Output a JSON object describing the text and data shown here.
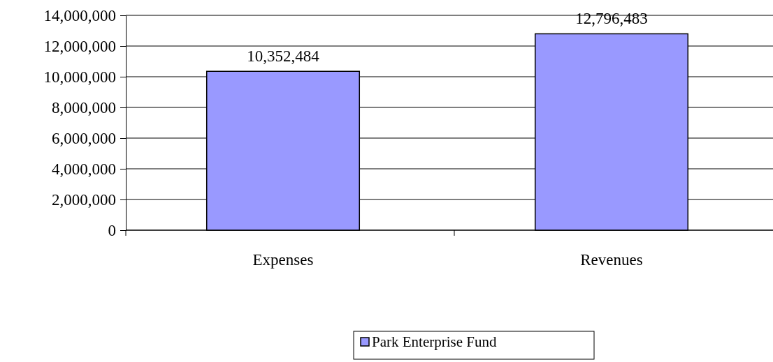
{
  "chart_data": {
    "type": "bar",
    "categories": [
      "Expenses",
      "Revenues"
    ],
    "series": [
      {
        "name": "Park Enterprise Fund",
        "color": "#9999ff",
        "values": [
          10352484,
          12796483
        ],
        "value_labels": [
          "10,352,484",
          "12,796,483"
        ]
      }
    ],
    "ylim": [
      0,
      14000000
    ],
    "yticks": [
      {
        "value": 0,
        "label": "0"
      },
      {
        "value": 2000000,
        "label": "2,000,000"
      },
      {
        "value": 4000000,
        "label": "4,000,000"
      },
      {
        "value": 6000000,
        "label": "6,000,000"
      },
      {
        "value": 8000000,
        "label": "8,000,000"
      },
      {
        "value": 10000000,
        "label": "10,000,000"
      },
      {
        "value": 12000000,
        "label": "12,000,000"
      },
      {
        "value": 14000000,
        "label": "14,000,000"
      }
    ],
    "grid": "y",
    "legend": "bottom"
  }
}
